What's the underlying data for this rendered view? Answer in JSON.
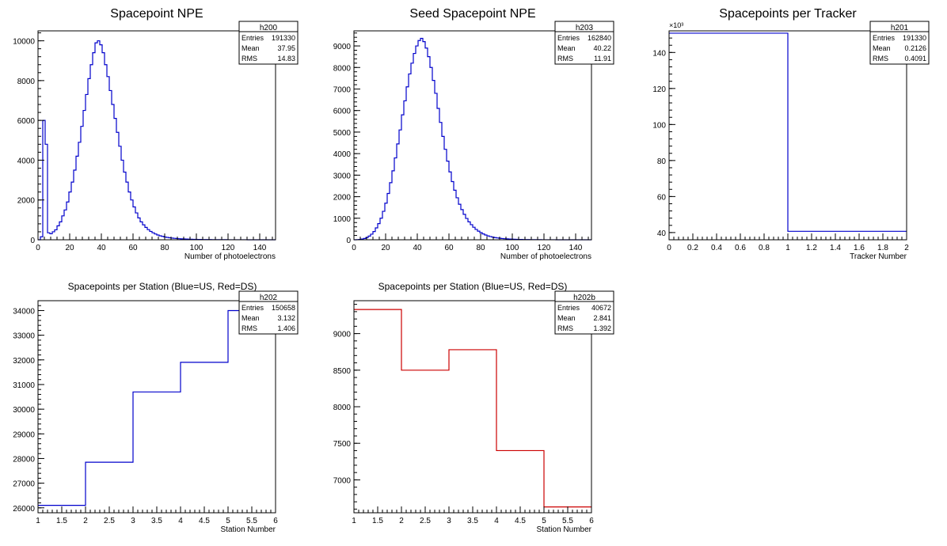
{
  "chart_data": [
    {
      "type": "bar",
      "title": "Spacepoint NPE",
      "xlabel": "Number of photoelectrons",
      "ylabel": "",
      "xlim": [
        0,
        150
      ],
      "ylim": [
        0,
        10500
      ],
      "xticks": [
        0,
        20,
        40,
        60,
        80,
        100,
        120,
        140
      ],
      "yticks": [
        0,
        2000,
        4000,
        6000,
        8000,
        10000
      ],
      "line_color": "#0000cc",
      "stats": {
        "name": "h200",
        "rows": [
          [
            "Entries",
            "191330"
          ],
          [
            "Mean",
            "37.95"
          ],
          [
            "RMS",
            "14.83"
          ]
        ]
      },
      "bin_width": 1.5,
      "x_start": 0,
      "values": [
        0,
        150,
        6000,
        4800,
        350,
        300,
        400,
        500,
        700,
        900,
        1200,
        1500,
        1900,
        2400,
        2900,
        3500,
        4200,
        4900,
        5700,
        6500,
        7300,
        8100,
        8800,
        9400,
        9900,
        10000,
        9800,
        9400,
        8800,
        8200,
        7500,
        6800,
        6100,
        5400,
        4700,
        4000,
        3400,
        2900,
        2400,
        2000,
        1650,
        1350,
        1100,
        900,
        750,
        620,
        510,
        420,
        350,
        290,
        240,
        200,
        170,
        140,
        120,
        100,
        85,
        72,
        62,
        53,
        46,
        40,
        35,
        30,
        26,
        23,
        20,
        17,
        15,
        13,
        11,
        10,
        9,
        8,
        7,
        6,
        5,
        5,
        4,
        4,
        3,
        3,
        3,
        2,
        2,
        2,
        2,
        2,
        1,
        1,
        1,
        1,
        1,
        1,
        1,
        1,
        1,
        1,
        1,
        1
      ]
    },
    {
      "type": "bar",
      "title": "Seed Spacepoint NPE",
      "xlabel": "Number of photoelectrons",
      "ylabel": "",
      "xlim": [
        0,
        150
      ],
      "ylim": [
        0,
        9700
      ],
      "xticks": [
        0,
        20,
        40,
        60,
        80,
        100,
        120,
        140
      ],
      "yticks": [
        0,
        1000,
        2000,
        3000,
        4000,
        5000,
        6000,
        7000,
        8000,
        9000
      ],
      "line_color": "#0000cc",
      "stats": {
        "name": "h203",
        "rows": [
          [
            "Entries",
            "162840"
          ],
          [
            "Mean",
            "40.22"
          ],
          [
            "RMS",
            "11.91"
          ]
        ]
      },
      "bin_width": 1.5,
      "x_start": 0,
      "values": [
        0,
        5,
        15,
        35,
        60,
        100,
        170,
        260,
        380,
        550,
        750,
        1000,
        1320,
        1700,
        2150,
        2650,
        3200,
        3800,
        4450,
        5100,
        5800,
        6450,
        7100,
        7700,
        8200,
        8650,
        9000,
        9250,
        9350,
        9200,
        8900,
        8500,
        8000,
        7400,
        6800,
        6100,
        5450,
        4800,
        4200,
        3650,
        3150,
        2700,
        2300,
        1950,
        1650,
        1400,
        1180,
        990,
        830,
        700,
        580,
        480,
        400,
        330,
        270,
        220,
        180,
        150,
        125,
        100,
        85,
        70,
        58,
        48,
        40,
        33,
        28,
        23,
        19,
        16,
        13,
        11,
        9,
        8,
        7,
        6,
        5,
        4,
        4,
        3,
        3,
        2,
        2,
        2,
        2,
        1,
        1,
        1,
        1,
        1,
        1,
        1,
        1,
        1,
        1,
        1,
        1,
        1,
        1,
        1
      ]
    },
    {
      "type": "bar",
      "title": "Spacepoints per Tracker",
      "xlabel": "Tracker Number",
      "ylabel": "",
      "xlim": [
        0,
        2
      ],
      "ylim": [
        36,
        152
      ],
      "xticks": [
        0,
        0.2,
        0.4,
        0.6,
        0.8,
        1,
        1.2,
        1.4,
        1.6,
        1.8,
        2
      ],
      "yticks": [
        40,
        60,
        80,
        100,
        120,
        140
      ],
      "y_exponent": "×10³",
      "line_color": "#0000cc",
      "stats": {
        "name": "h201",
        "rows": [
          [
            "Entries",
            "191330"
          ],
          [
            "Mean",
            "0.2126"
          ],
          [
            "RMS",
            "0.4091"
          ]
        ]
      },
      "bin_width": 1,
      "x_start": 0,
      "values": [
        150.7,
        40.7
      ]
    },
    {
      "type": "bar",
      "title": "Spacepoints per Station (Blue=US, Red=DS)",
      "xlabel": "Station Number",
      "ylabel": "",
      "xlim": [
        1,
        6
      ],
      "ylim": [
        25800,
        34400
      ],
      "xticks": [
        1,
        1.5,
        2,
        2.5,
        3,
        3.5,
        4,
        4.5,
        5,
        5.5,
        6
      ],
      "yticks": [
        26000,
        27000,
        28000,
        29000,
        30000,
        31000,
        32000,
        33000,
        34000
      ],
      "line_color": "#0000cc",
      "stats": {
        "name": "h202",
        "rows": [
          [
            "Entries",
            "150658"
          ],
          [
            "Mean",
            "3.132"
          ],
          [
            "RMS",
            "1.406"
          ]
        ]
      },
      "bin_width": 1,
      "x_start": 1,
      "values": [
        26100,
        27850,
        30700,
        31900,
        34000
      ]
    },
    {
      "type": "bar",
      "title": "Spacepoints per Station (Blue=US, Red=DS)",
      "xlabel": "Station Number",
      "ylabel": "",
      "xlim": [
        1,
        6
      ],
      "ylim": [
        6550,
        9450
      ],
      "xticks": [
        1,
        1.5,
        2,
        2.5,
        3,
        3.5,
        4,
        4.5,
        5,
        5.5,
        6
      ],
      "yticks": [
        7000,
        7500,
        8000,
        8500,
        9000
      ],
      "line_color": "#cc0000",
      "stats": {
        "name": "h202b",
        "rows": [
          [
            "Entries",
            "40672"
          ],
          [
            "Mean",
            "2.841"
          ],
          [
            "RMS",
            "1.392"
          ]
        ]
      },
      "bin_width": 1,
      "x_start": 1,
      "values": [
        9330,
        8500,
        8780,
        7400,
        6630
      ]
    }
  ]
}
